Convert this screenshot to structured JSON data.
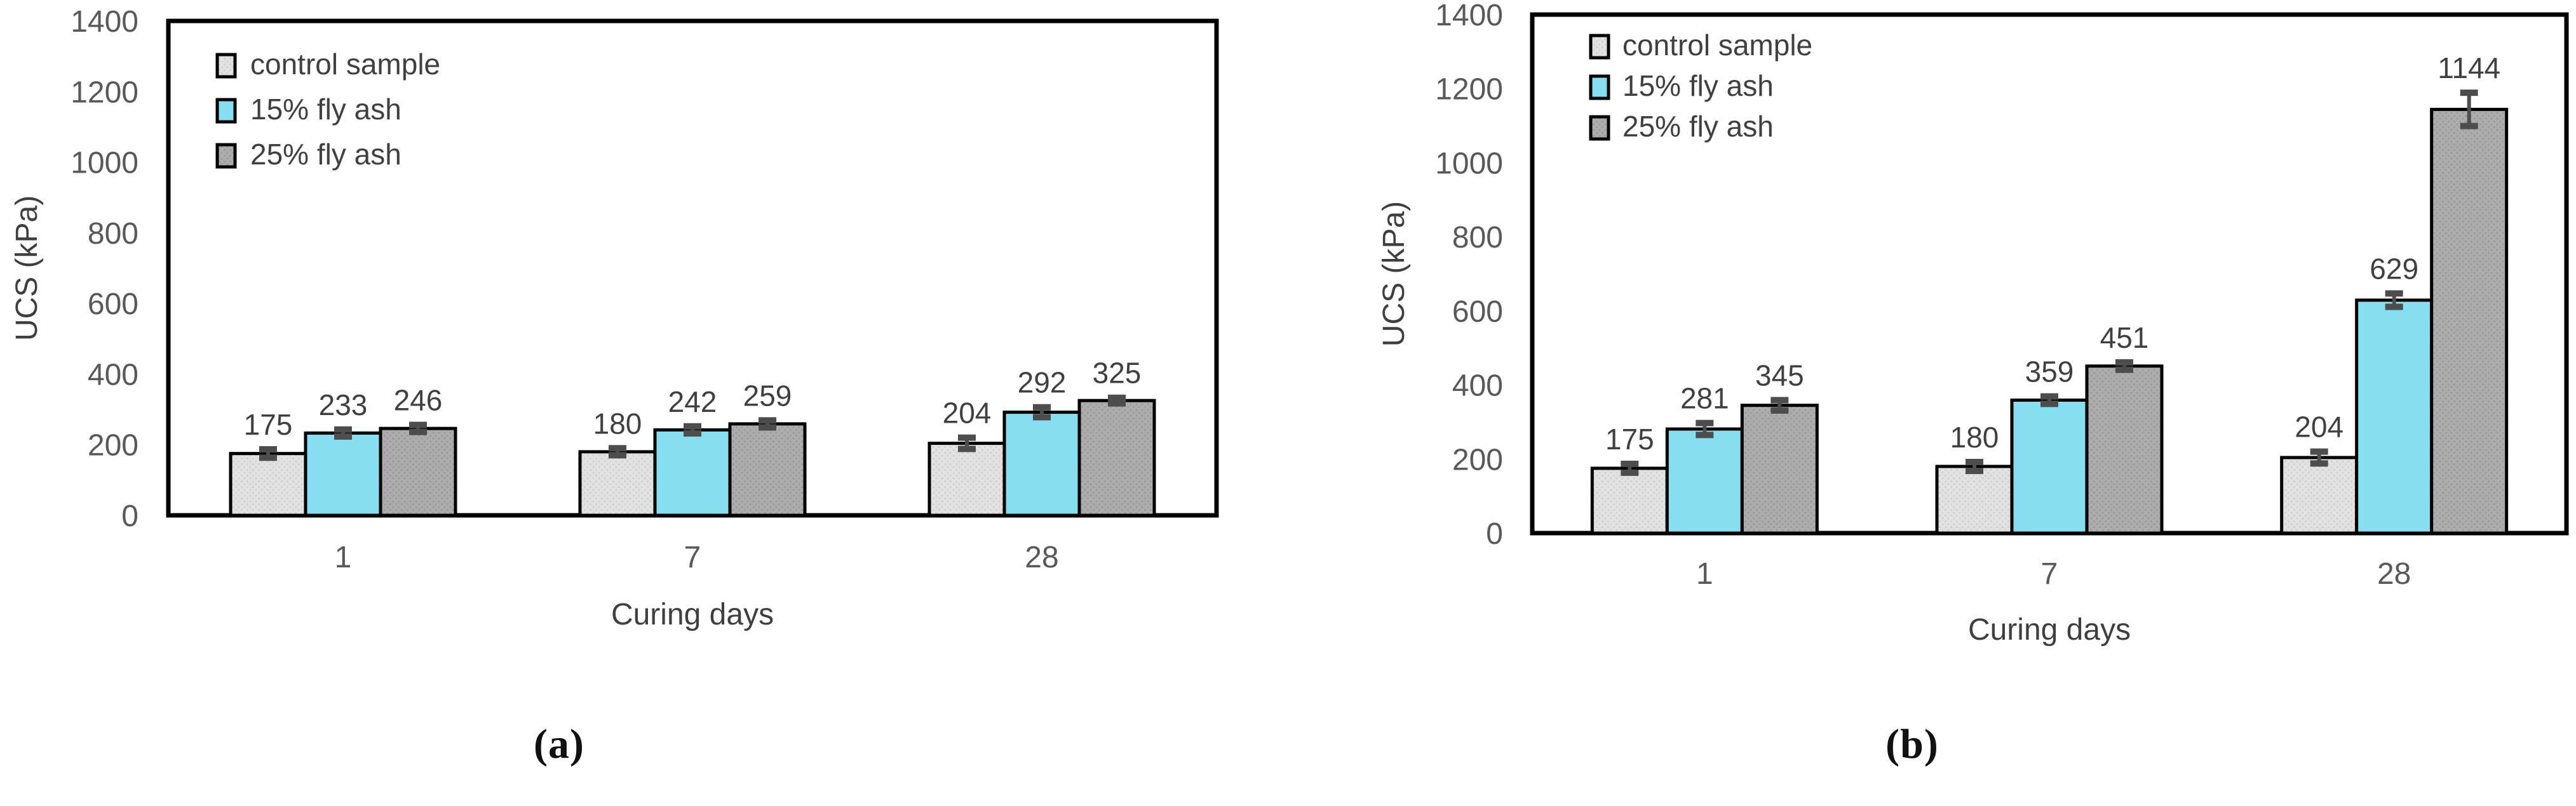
{
  "figure": {
    "captions": [
      {
        "label": "(a)"
      },
      {
        "label": "(b)"
      }
    ]
  },
  "style": {
    "tick_text_color": "#595959",
    "value_label_color": "#404040",
    "axis_title_color": "#3f3f3f",
    "bar_border_color": "#000000",
    "plot_border_color": "#000000",
    "error_bar_color": "#4d4d4d",
    "background_color": "#ffffff"
  },
  "chart_data": [
    {
      "type": "bar",
      "panel": "a",
      "xlabel": "Curing days",
      "ylabel": "UCS (kPa)",
      "ylim": [
        0,
        1400
      ],
      "yticks": [
        0,
        200,
        400,
        600,
        800,
        1000,
        1200,
        1400
      ],
      "categories": [
        "1",
        "7",
        "28"
      ],
      "grid": false,
      "legend_position": "top-left",
      "data_labels": true,
      "error_bars": true,
      "series": [
        {
          "name": "control sample",
          "values": [
            175,
            180,
            204
          ],
          "errors": [
            12,
            10,
            16
          ],
          "color": "#E2E2E2",
          "pattern_dot_color": "#D2D2D2",
          "patterned": true
        },
        {
          "name": "15% fly ash",
          "values": [
            233,
            242,
            292
          ],
          "errors": [
            10,
            10,
            14
          ],
          "color": "#85DFF1",
          "patterned": false
        },
        {
          "name": "25% fly ash",
          "values": [
            246,
            259,
            325
          ],
          "errors": [
            10,
            10,
            8
          ],
          "color": "#ADADAD",
          "pattern_dot_color": "#9C9C9C",
          "patterned": true
        }
      ]
    },
    {
      "type": "bar",
      "panel": "b",
      "xlabel": "Curing days",
      "ylabel": "UCS (kPa)",
      "ylim": [
        0,
        1400
      ],
      "yticks": [
        0,
        200,
        400,
        600,
        800,
        1000,
        1200,
        1400
      ],
      "categories": [
        "1",
        "7",
        "28"
      ],
      "grid": false,
      "legend_position": "top-left",
      "data_labels": true,
      "error_bars": true,
      "series": [
        {
          "name": "control sample",
          "values": [
            175,
            180,
            204
          ],
          "errors": [
            12,
            12,
            16
          ],
          "color": "#E2E2E2",
          "pattern_dot_color": "#D2D2D2",
          "patterned": true
        },
        {
          "name": "15% fly ash",
          "values": [
            281,
            359,
            629
          ],
          "errors": [
            16,
            10,
            18
          ],
          "color": "#85DFF1",
          "patterned": false
        },
        {
          "name": "25% fly ash",
          "values": [
            345,
            451,
            1144
          ],
          "errors": [
            14,
            10,
            45
          ],
          "color": "#ADADAD",
          "pattern_dot_color": "#9C9C9C",
          "patterned": true
        }
      ]
    }
  ]
}
